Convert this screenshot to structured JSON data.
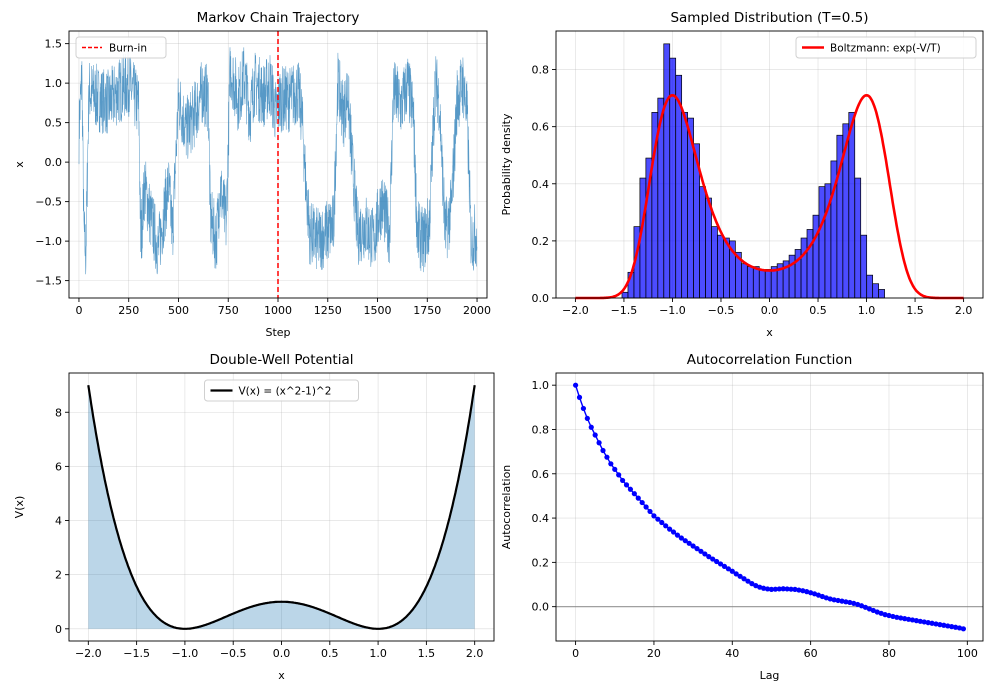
{
  "chart_data": [
    {
      "id": "trajectory",
      "type": "line",
      "title": "Markov Chain Trajectory",
      "xlabel": "Step",
      "ylabel": "x",
      "xlim": [
        -50,
        2050
      ],
      "ylim": [
        -1.72,
        1.66
      ],
      "xticks": [
        0,
        250,
        500,
        750,
        1000,
        1250,
        1500,
        1750,
        2000
      ],
      "xtick_labels": [
        "0",
        "250",
        "500",
        "750",
        "1000",
        "1250",
        "1500",
        "1750",
        "2000"
      ],
      "yticks": [
        -1.5,
        -1.0,
        -0.5,
        0.0,
        0.5,
        1.0,
        1.5
      ],
      "ytick_labels": [
        "−1.5",
        "−1.0",
        "−0.5",
        "0.0",
        "0.5",
        "1.0",
        "1.5"
      ],
      "grid": true,
      "legend_position": "top-left",
      "line_color": "#1f77b4",
      "burnin_color": "#ff0000",
      "series": [
        {
          "name": "",
          "points": [
            [
              0,
              0.4
            ],
            [
              15,
              1.1
            ],
            [
              25,
              -0.9
            ],
            [
              35,
              -1.15
            ],
            [
              50,
              0.9
            ],
            [
              100,
              0.8
            ],
            [
              150,
              0.75
            ],
            [
              200,
              0.9
            ],
            [
              250,
              1.0
            ],
            [
              300,
              0.7
            ],
            [
              310,
              -1.0
            ],
            [
              330,
              -0.3
            ],
            [
              360,
              -0.7
            ],
            [
              400,
              -1.1
            ],
            [
              430,
              -0.6
            ],
            [
              450,
              -0.3
            ],
            [
              470,
              -0.9
            ],
            [
              500,
              0.8
            ],
            [
              540,
              0.4
            ],
            [
              580,
              0.6
            ],
            [
              620,
              0.9
            ],
            [
              650,
              0.8
            ],
            [
              660,
              -0.7
            ],
            [
              690,
              -1.0
            ],
            [
              710,
              -0.3
            ],
            [
              740,
              -0.8
            ],
            [
              760,
              1.2
            ],
            [
              800,
              0.8
            ],
            [
              830,
              1.1
            ],
            [
              860,
              0.6
            ],
            [
              880,
              1.0
            ],
            [
              930,
              0.85
            ],
            [
              960,
              1.0
            ],
            [
              990,
              0.6
            ],
            [
              1010,
              0.8
            ],
            [
              1060,
              0.8
            ],
            [
              1100,
              0.9
            ],
            [
              1120,
              0.6
            ],
            [
              1140,
              -0.3
            ],
            [
              1160,
              -0.9
            ],
            [
              1200,
              -1.0
            ],
            [
              1240,
              -0.9
            ],
            [
              1280,
              -0.8
            ],
            [
              1300,
              1.0
            ],
            [
              1330,
              0.6
            ],
            [
              1350,
              0.9
            ],
            [
              1370,
              0.1
            ],
            [
              1400,
              -0.9
            ],
            [
              1440,
              -0.8
            ],
            [
              1480,
              -1.0
            ],
            [
              1520,
              -0.5
            ],
            [
              1560,
              -0.9
            ],
            [
              1580,
              0.9
            ],
            [
              1620,
              0.7
            ],
            [
              1650,
              1.0
            ],
            [
              1680,
              0.6
            ],
            [
              1700,
              -0.9
            ],
            [
              1730,
              -1.0
            ],
            [
              1760,
              -0.8
            ],
            [
              1790,
              1.0
            ],
            [
              1810,
              0.8
            ],
            [
              1840,
              -0.9
            ],
            [
              1870,
              -0.6
            ],
            [
              1900,
              0.8
            ],
            [
              1930,
              1.0
            ],
            [
              1950,
              0.6
            ],
            [
              1970,
              -1.0
            ],
            [
              2000,
              -0.9
            ]
          ]
        }
      ],
      "burnin_x": 1000,
      "legend": [
        {
          "label": "Burn-in"
        }
      ]
    },
    {
      "id": "sampled",
      "type": "bar",
      "title": "Sampled Distribution (T=0.5)",
      "xlabel": "x",
      "ylabel": "Probability density",
      "xlim": [
        -2.2,
        2.2
      ],
      "ylim": [
        0,
        0.935
      ],
      "xticks": [
        -2.0,
        -1.5,
        -1.0,
        -0.5,
        0.0,
        0.5,
        1.0,
        1.5,
        2.0
      ],
      "xtick_labels": [
        "−2.0",
        "−1.5",
        "−1.0",
        "−0.5",
        "0.0",
        "0.5",
        "1.0",
        "1.5",
        "2.0"
      ],
      "yticks": [
        0.0,
        0.2,
        0.4,
        0.6,
        0.8
      ],
      "ytick_labels": [
        "0.0",
        "0.2",
        "0.4",
        "0.6",
        "0.8"
      ],
      "grid": true,
      "legend_position": "top-right",
      "bar_color": "#0000ff",
      "bar_edge_color": "#000000",
      "curve_color": "#ff0000",
      "bin_start": -1.52,
      "bin_width": 0.0615,
      "densities": [
        0.02,
        0.09,
        0.25,
        0.42,
        0.49,
        0.65,
        0.7,
        0.89,
        0.84,
        0.78,
        0.65,
        0.63,
        0.54,
        0.39,
        0.35,
        0.25,
        0.22,
        0.21,
        0.2,
        0.16,
        0.12,
        0.11,
        0.11,
        0.1,
        0.1,
        0.11,
        0.12,
        0.13,
        0.15,
        0.17,
        0.21,
        0.24,
        0.29,
        0.39,
        0.4,
        0.48,
        0.57,
        0.61,
        0.65,
        0.42,
        0.22,
        0.08,
        0.05,
        0.03
      ],
      "curve": {
        "formula": "exp(-(x^2-1)^2 / T) / Z",
        "T": 0.5,
        "peak": 0.71,
        "x_range": [
          -2.0,
          2.0
        ]
      },
      "legend": [
        {
          "label": "Boltzmann: exp(-V/T)"
        }
      ]
    },
    {
      "id": "potential",
      "type": "area",
      "title": "Double-Well Potential",
      "xlabel": "x",
      "ylabel": "V(x)",
      "xlim": [
        -2.2,
        2.2
      ],
      "ylim": [
        -0.45,
        9.45
      ],
      "xticks": [
        -2.0,
        -1.5,
        -1.0,
        -0.5,
        0.0,
        0.5,
        1.0,
        1.5,
        2.0
      ],
      "xtick_labels": [
        "−2.0",
        "−1.5",
        "−1.0",
        "−0.5",
        "0.0",
        "0.5",
        "1.0",
        "1.5",
        "2.0"
      ],
      "yticks": [
        0,
        2,
        4,
        6,
        8
      ],
      "ytick_labels": [
        "0",
        "2",
        "4",
        "6",
        "8"
      ],
      "grid": true,
      "legend_position": "top-center",
      "curve_color": "#000000",
      "fill_color": "#1f77b4",
      "curve": {
        "formula": "(x^2-1)^2",
        "x_range": [
          -2.0,
          2.0
        ]
      },
      "legend": [
        {
          "label": "V(x) = (x^2-1)^2"
        }
      ]
    },
    {
      "id": "autocorr",
      "type": "line",
      "title": "Autocorrelation Function",
      "xlabel": "Lag",
      "ylabel": "Autocorrelation",
      "xlim": [
        -5,
        104
      ],
      "ylim": [
        -0.155,
        1.055
      ],
      "xticks": [
        0,
        20,
        40,
        60,
        80,
        100
      ],
      "xtick_labels": [
        "0",
        "20",
        "40",
        "60",
        "80",
        "100"
      ],
      "yticks": [
        0.0,
        0.2,
        0.4,
        0.6,
        0.8,
        1.0
      ],
      "ytick_labels": [
        "0.0",
        "0.2",
        "0.4",
        "0.6",
        "0.8",
        "1.0"
      ],
      "grid": true,
      "zero_line": 0,
      "marker_color": "#0000ff",
      "lags": [
        0,
        1,
        2,
        3,
        4,
        5,
        6,
        7,
        8,
        9,
        10,
        11,
        12,
        13,
        14,
        15,
        16,
        17,
        18,
        19,
        20,
        21,
        22,
        23,
        24,
        25,
        26,
        27,
        28,
        29,
        30,
        31,
        32,
        33,
        34,
        35,
        36,
        37,
        38,
        39,
        40,
        41,
        42,
        43,
        44,
        45,
        46,
        47,
        48,
        49,
        50,
        51,
        52,
        53,
        54,
        55,
        56,
        57,
        58,
        59,
        60,
        61,
        62,
        63,
        64,
        65,
        66,
        67,
        68,
        69,
        70,
        71,
        72,
        73,
        74,
        75,
        76,
        77,
        78,
        79,
        80,
        81,
        82,
        83,
        84,
        85,
        86,
        87,
        88,
        89,
        90,
        91,
        92,
        93,
        94,
        95,
        96,
        97,
        98,
        99
      ],
      "values": [
        1.0,
        0.945,
        0.895,
        0.85,
        0.81,
        0.775,
        0.74,
        0.705,
        0.675,
        0.645,
        0.62,
        0.595,
        0.57,
        0.55,
        0.53,
        0.51,
        0.49,
        0.47,
        0.45,
        0.43,
        0.41,
        0.395,
        0.38,
        0.365,
        0.35,
        0.337,
        0.323,
        0.31,
        0.298,
        0.286,
        0.274,
        0.262,
        0.25,
        0.238,
        0.226,
        0.215,
        0.204,
        0.193,
        0.182,
        0.171,
        0.16,
        0.148,
        0.137,
        0.126,
        0.115,
        0.104,
        0.095,
        0.088,
        0.083,
        0.08,
        0.078,
        0.079,
        0.08,
        0.081,
        0.08,
        0.079,
        0.078,
        0.075,
        0.072,
        0.068,
        0.063,
        0.058,
        0.052,
        0.046,
        0.04,
        0.035,
        0.031,
        0.028,
        0.025,
        0.022,
        0.019,
        0.015,
        0.01,
        0.004,
        -0.003,
        -0.01,
        -0.017,
        -0.024,
        -0.03,
        -0.036,
        -0.04,
        -0.044,
        -0.048,
        -0.051,
        -0.054,
        -0.057,
        -0.06,
        -0.063,
        -0.066,
        -0.069,
        -0.072,
        -0.075,
        -0.078,
        -0.081,
        -0.084,
        -0.087,
        -0.09,
        -0.093,
        -0.096,
        -0.1
      ]
    }
  ]
}
